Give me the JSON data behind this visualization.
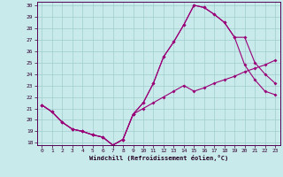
{
  "xlabel": "Windchill (Refroidissement éolien,°C)",
  "bg_color": "#c8eaea",
  "grid_color": "#a0cccc",
  "line_color": "#990077",
  "xlim": [
    -0.5,
    23.5
  ],
  "ylim": [
    17.8,
    30.3
  ],
  "yticks": [
    18,
    19,
    20,
    21,
    22,
    23,
    24,
    25,
    26,
    27,
    28,
    29,
    30
  ],
  "xticks": [
    0,
    1,
    2,
    3,
    4,
    5,
    6,
    7,
    8,
    9,
    10,
    11,
    12,
    13,
    14,
    15,
    16,
    17,
    18,
    19,
    20,
    21,
    22,
    23
  ],
  "line1_x": [
    0,
    1,
    2,
    3,
    4,
    5,
    6,
    7,
    8,
    9,
    10,
    11,
    12,
    13,
    14,
    15,
    16,
    17,
    18,
    19,
    20,
    21,
    22,
    23
  ],
  "line1_y": [
    21.3,
    20.7,
    19.8,
    19.2,
    19.0,
    18.7,
    18.5,
    17.8,
    18.3,
    20.5,
    21.5,
    23.2,
    25.5,
    26.8,
    28.3,
    30.0,
    29.8,
    29.2,
    28.5,
    27.2,
    27.2,
    25.0,
    24.0,
    23.2
  ],
  "line2_x": [
    0,
    1,
    2,
    3,
    4,
    5,
    6,
    7,
    8,
    9,
    10,
    11,
    12,
    13,
    14,
    15,
    16,
    17,
    18,
    19,
    20,
    21,
    22,
    23
  ],
  "line2_y": [
    21.3,
    20.7,
    19.8,
    19.2,
    19.0,
    18.7,
    18.5,
    17.8,
    18.3,
    20.5,
    21.5,
    23.2,
    25.5,
    26.8,
    28.3,
    30.0,
    29.8,
    29.2,
    28.5,
    27.2,
    24.8,
    23.5,
    22.5,
    22.2
  ],
  "line3_x": [
    0,
    1,
    2,
    3,
    4,
    5,
    6,
    7,
    8,
    9,
    10,
    11,
    12,
    13,
    14,
    15,
    16,
    17,
    18,
    19,
    20,
    21,
    22,
    23
  ],
  "line3_y": [
    21.3,
    20.7,
    19.8,
    19.2,
    19.0,
    18.7,
    18.5,
    17.8,
    18.3,
    20.5,
    21.0,
    21.5,
    22.0,
    22.5,
    23.0,
    22.5,
    22.8,
    23.2,
    23.5,
    23.8,
    24.2,
    24.5,
    24.8,
    25.2
  ]
}
